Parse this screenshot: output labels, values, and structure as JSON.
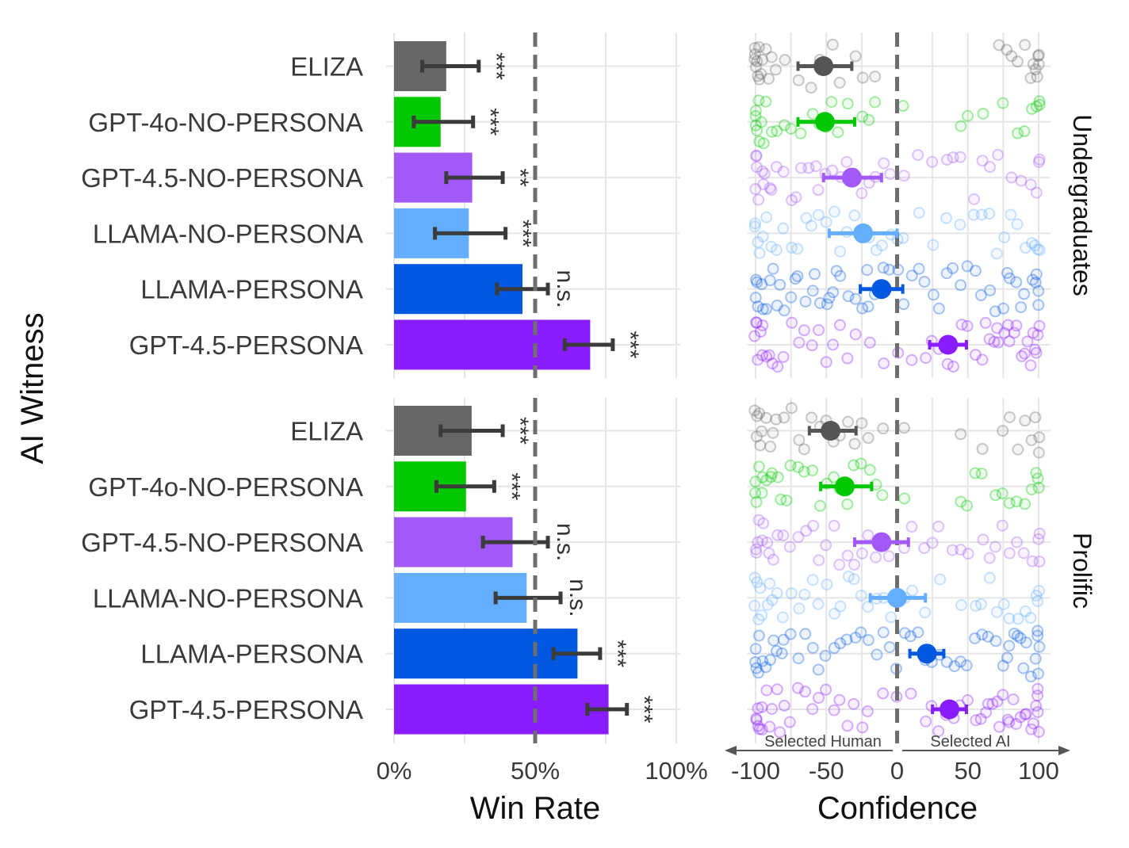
{
  "chart_data": [
    {
      "type": "bar",
      "panel": "Win Rate",
      "xlabel": "Win Rate",
      "ylabel": "AI Witness",
      "xlim": [
        0,
        100
      ],
      "x_ticks": [
        "0%",
        "50%",
        "100%"
      ],
      "reference_line": 50,
      "categories": [
        "ELIZA",
        "GPT-4o-NO-PERSONA",
        "GPT-4.5-NO-PERSONA",
        "LLAMA-NO-PERSONA",
        "LLAMA-PERSONA",
        "GPT-4.5-PERSONA"
      ],
      "colors": [
        "#666666",
        "#00c800",
        "#a259f7",
        "#64aeff",
        "#0058e0",
        "#8a1dff"
      ],
      "facets": [
        {
          "name": "Undergraduates",
          "values": [
            18.5,
            16.5,
            27.7,
            26.5,
            45.5,
            69.5
          ],
          "ci_low": [
            10,
            7,
            18.5,
            14.5,
            36.5,
            60.5
          ],
          "ci_high": [
            30,
            28,
            38.5,
            39.5,
            54.5,
            77.5
          ],
          "significance": [
            "***",
            "***",
            "**",
            "***",
            "n.s.",
            "***"
          ]
        },
        {
          "name": "Prolific",
          "values": [
            27.5,
            25.5,
            42,
            47,
            65,
            76
          ],
          "ci_low": [
            16.5,
            15,
            31.5,
            36,
            56.5,
            68.5
          ],
          "ci_high": [
            38.5,
            35.5,
            54.5,
            59,
            73,
            82.5
          ],
          "significance": [
            "***",
            "***",
            "n.s.",
            "n.s.",
            "***",
            "***"
          ]
        }
      ]
    },
    {
      "type": "scatter",
      "panel": "Confidence",
      "xlabel": "Confidence",
      "xlim": [
        -100,
        100
      ],
      "x_ticks": [
        "-100",
        "-50",
        "0",
        "50",
        "100"
      ],
      "reference_line": 0,
      "direction_labels": [
        "Selected Human",
        "Selected AI"
      ],
      "categories": [
        "ELIZA",
        "GPT-4o-NO-PERSONA",
        "GPT-4.5-NO-PERSONA",
        "LLAMA-NO-PERSONA",
        "LLAMA-PERSONA",
        "GPT-4.5-PERSONA"
      ],
      "colors": [
        "#666666",
        "#00c800",
        "#a259f7",
        "#64aeff",
        "#0058e0",
        "#8a1dff"
      ],
      "facets": [
        {
          "name": "Undergraduates",
          "means": [
            -52,
            -51,
            -32,
            -24,
            -11,
            36
          ],
          "ci_low": [
            -70,
            -70,
            -52,
            -48,
            -26,
            23
          ],
          "ci_high": [
            -32,
            -30,
            -11,
            0,
            4,
            49
          ],
          "raw_points": [
            [
              -100,
              -100,
              -99,
              -98,
              -100,
              -97,
              -95,
              -100,
              -99,
              -96,
              -93,
              -90,
              -88,
              -85,
              -80,
              -70,
              -60,
              -55,
              -45,
              -40,
              -30,
              -25,
              -15,
              100,
              98,
              100,
              97,
              95,
              90,
              85,
              80,
              78,
              72,
              100,
              99
            ],
            [
              -100,
              -99,
              -100,
              -98,
              -97,
              -100,
              -96,
              -95,
              -92,
              -88,
              -85,
              -80,
              -75,
              -68,
              -60,
              -55,
              -50,
              -47,
              -42,
              -35,
              -25,
              -20,
              -15,
              5,
              45,
              50,
              60,
              75,
              85,
              90,
              95,
              100,
              100,
              98
            ],
            [
              -100,
              -100,
              -99,
              -98,
              -100,
              -96,
              -95,
              -93,
              -90,
              -88,
              -85,
              -80,
              -75,
              -72,
              -68,
              -62,
              -58,
              -55,
              -50,
              -45,
              -40,
              -35,
              -30,
              -25,
              -20,
              -15,
              -10,
              -5,
              5,
              15,
              25,
              35,
              40,
              45,
              55,
              60,
              65,
              72,
              80,
              88,
              95,
              100,
              100,
              99
            ],
            [
              -100,
              -100,
              -99,
              -97,
              -95,
              -92,
              -88,
              -85,
              -80,
              -75,
              -70,
              -65,
              -60,
              -55,
              -50,
              -45,
              -40,
              -35,
              -30,
              -25,
              -20,
              -15,
              -10,
              -5,
              0,
              5,
              15,
              25,
              35,
              45,
              55,
              60,
              65,
              70,
              75,
              80,
              85,
              90,
              95,
              100,
              100,
              98
            ],
            [
              -100,
              -100,
              -99,
              -98,
              -96,
              -95,
              -92,
              -90,
              -88,
              -85,
              -82,
              -80,
              -75,
              -72,
              -70,
              -65,
              -60,
              -58,
              -55,
              -50,
              -48,
              -45,
              -42,
              -40,
              -35,
              -30,
              -25,
              -22,
              -20,
              -15,
              -10,
              -5,
              0,
              5,
              10,
              15,
              20,
              25,
              30,
              35,
              40,
              45,
              50,
              55,
              60,
              65,
              70,
              75,
              78,
              80,
              85,
              88,
              90,
              95,
              100,
              100,
              99,
              98
            ],
            [
              -100,
              -100,
              -99,
              -98,
              -97,
              -96,
              -95,
              -93,
              -90,
              -88,
              -85,
              -80,
              -75,
              -70,
              -65,
              -60,
              -55,
              -50,
              -45,
              -40,
              -35,
              -30,
              -20,
              -10,
              0,
              10,
              20,
              25,
              30,
              35,
              40,
              45,
              50,
              55,
              60,
              62,
              65,
              68,
              70,
              72,
              75,
              78,
              80,
              82,
              85,
              88,
              90,
              92,
              95,
              98,
              100,
              100,
              99,
              97
            ]
          ]
        },
        {
          "name": "Prolific",
          "means": [
            -47,
            -37,
            -11,
            0,
            21,
            37
          ],
          "ci_low": [
            -62,
            -54,
            -30,
            -19,
            9,
            25
          ],
          "ci_high": [
            -29,
            -18,
            8,
            20,
            33,
            49
          ],
          "raw_points": [
            [
              -100,
              -100,
              -99,
              -98,
              -97,
              -95,
              -92,
              -90,
              -88,
              -85,
              -80,
              -75,
              -70,
              -65,
              -60,
              -55,
              -50,
              -45,
              -40,
              -35,
              -30,
              -25,
              -20,
              -10,
              5,
              45,
              60,
              75,
              80,
              85,
              90,
              95,
              100,
              100,
              98
            ],
            [
              -100,
              -100,
              -99,
              -98,
              -96,
              -95,
              -92,
              -90,
              -88,
              -85,
              -82,
              -78,
              -75,
              -70,
              -65,
              -60,
              -55,
              -50,
              -45,
              -40,
              -35,
              -30,
              -25,
              -20,
              -15,
              -10,
              5,
              45,
              50,
              55,
              60,
              70,
              75,
              80,
              85,
              90,
              95,
              100,
              100,
              98
            ],
            [
              -100,
              -100,
              -99,
              -98,
              -96,
              -95,
              -92,
              -90,
              -88,
              -85,
              -80,
              -75,
              -70,
              -65,
              -60,
              -55,
              -50,
              -45,
              -40,
              -35,
              -30,
              -25,
              -20,
              -15,
              -10,
              -5,
              5,
              10,
              20,
              25,
              30,
              40,
              45,
              50,
              60,
              65,
              70,
              75,
              80,
              85,
              90,
              95,
              100,
              100,
              99
            ],
            [
              -100,
              -100,
              -99,
              -98,
              -96,
              -95,
              -92,
              -90,
              -88,
              -85,
              -80,
              -75,
              -70,
              -65,
              -60,
              -55,
              -50,
              -45,
              -40,
              -35,
              -30,
              -25,
              -20,
              -15,
              -10,
              -5,
              0,
              5,
              10,
              20,
              30,
              45,
              55,
              60,
              65,
              70,
              75,
              80,
              85,
              90,
              95,
              100,
              100,
              99
            ],
            [
              -100,
              -100,
              -99,
              -98,
              -97,
              -95,
              -92,
              -90,
              -88,
              -85,
              -82,
              -80,
              -75,
              -70,
              -65,
              -60,
              -55,
              -50,
              -45,
              -40,
              -35,
              -30,
              -25,
              -20,
              -15,
              -10,
              -5,
              0,
              5,
              10,
              15,
              20,
              25,
              30,
              35,
              40,
              45,
              50,
              55,
              60,
              65,
              70,
              75,
              78,
              80,
              82,
              85,
              88,
              90,
              92,
              95,
              98,
              100,
              100,
              100,
              99
            ],
            [
              -100,
              -100,
              -99,
              -98,
              -97,
              -96,
              -95,
              -93,
              -90,
              -88,
              -85,
              -82,
              -80,
              -75,
              -70,
              -65,
              -60,
              -55,
              -50,
              -45,
              -40,
              -35,
              -30,
              -25,
              -20,
              -10,
              0,
              10,
              20,
              25,
              30,
              35,
              40,
              45,
              50,
              55,
              60,
              62,
              65,
              68,
              70,
              72,
              75,
              78,
              80,
              82,
              85,
              88,
              90,
              92,
              95,
              97,
              98,
              100,
              100,
              100,
              99
            ]
          ]
        }
      ]
    }
  ]
}
